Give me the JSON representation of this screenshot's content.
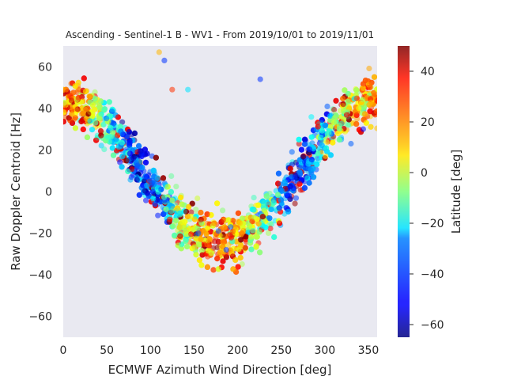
{
  "chart_data": {
    "type": "scatter",
    "title": "Ascending - Sentinel-1 B - WV1 - From 2019/10/01 to 2019/11/01",
    "xlabel": "ECMWF Azimuth Wind Direction [deg]",
    "ylabel": "Raw Doppler Centroid [Hz]",
    "xlim": [
      0,
      360
    ],
    "ylim": [
      -70,
      70
    ],
    "xticks": [
      0,
      50,
      100,
      150,
      200,
      250,
      300,
      350
    ],
    "yticks": [
      -60,
      -40,
      -20,
      0,
      20,
      40,
      60
    ],
    "grid": false,
    "background": "#e9e9f1",
    "colormap": "jet",
    "colorbar": {
      "label": "Latitude [deg]",
      "range": [
        -65,
        50
      ],
      "ticks": [
        -60,
        -40,
        -20,
        0,
        20,
        40
      ]
    },
    "point_alpha": 0.55,
    "highlighted_points": [
      {
        "x": 110,
        "y": 67,
        "lat": 15
      },
      {
        "x": 116,
        "y": 63,
        "lat": -45
      },
      {
        "x": 226,
        "y": 54,
        "lat": -45
      },
      {
        "x": 143,
        "y": 49,
        "lat": -25
      },
      {
        "x": 125,
        "y": 49,
        "lat": 30
      },
      {
        "x": 187,
        "y": -28,
        "lat": -45
      },
      {
        "x": 155,
        "y": -20,
        "lat": -40
      },
      {
        "x": 178,
        "y": -19,
        "lat": -40
      },
      {
        "x": 192,
        "y": -17,
        "lat": -40
      },
      {
        "x": 344,
        "y": 30,
        "lat": -50
      },
      {
        "x": 330,
        "y": 23,
        "lat": -40
      },
      {
        "x": 301,
        "y": 17,
        "lat": 10
      }
    ]
  }
}
